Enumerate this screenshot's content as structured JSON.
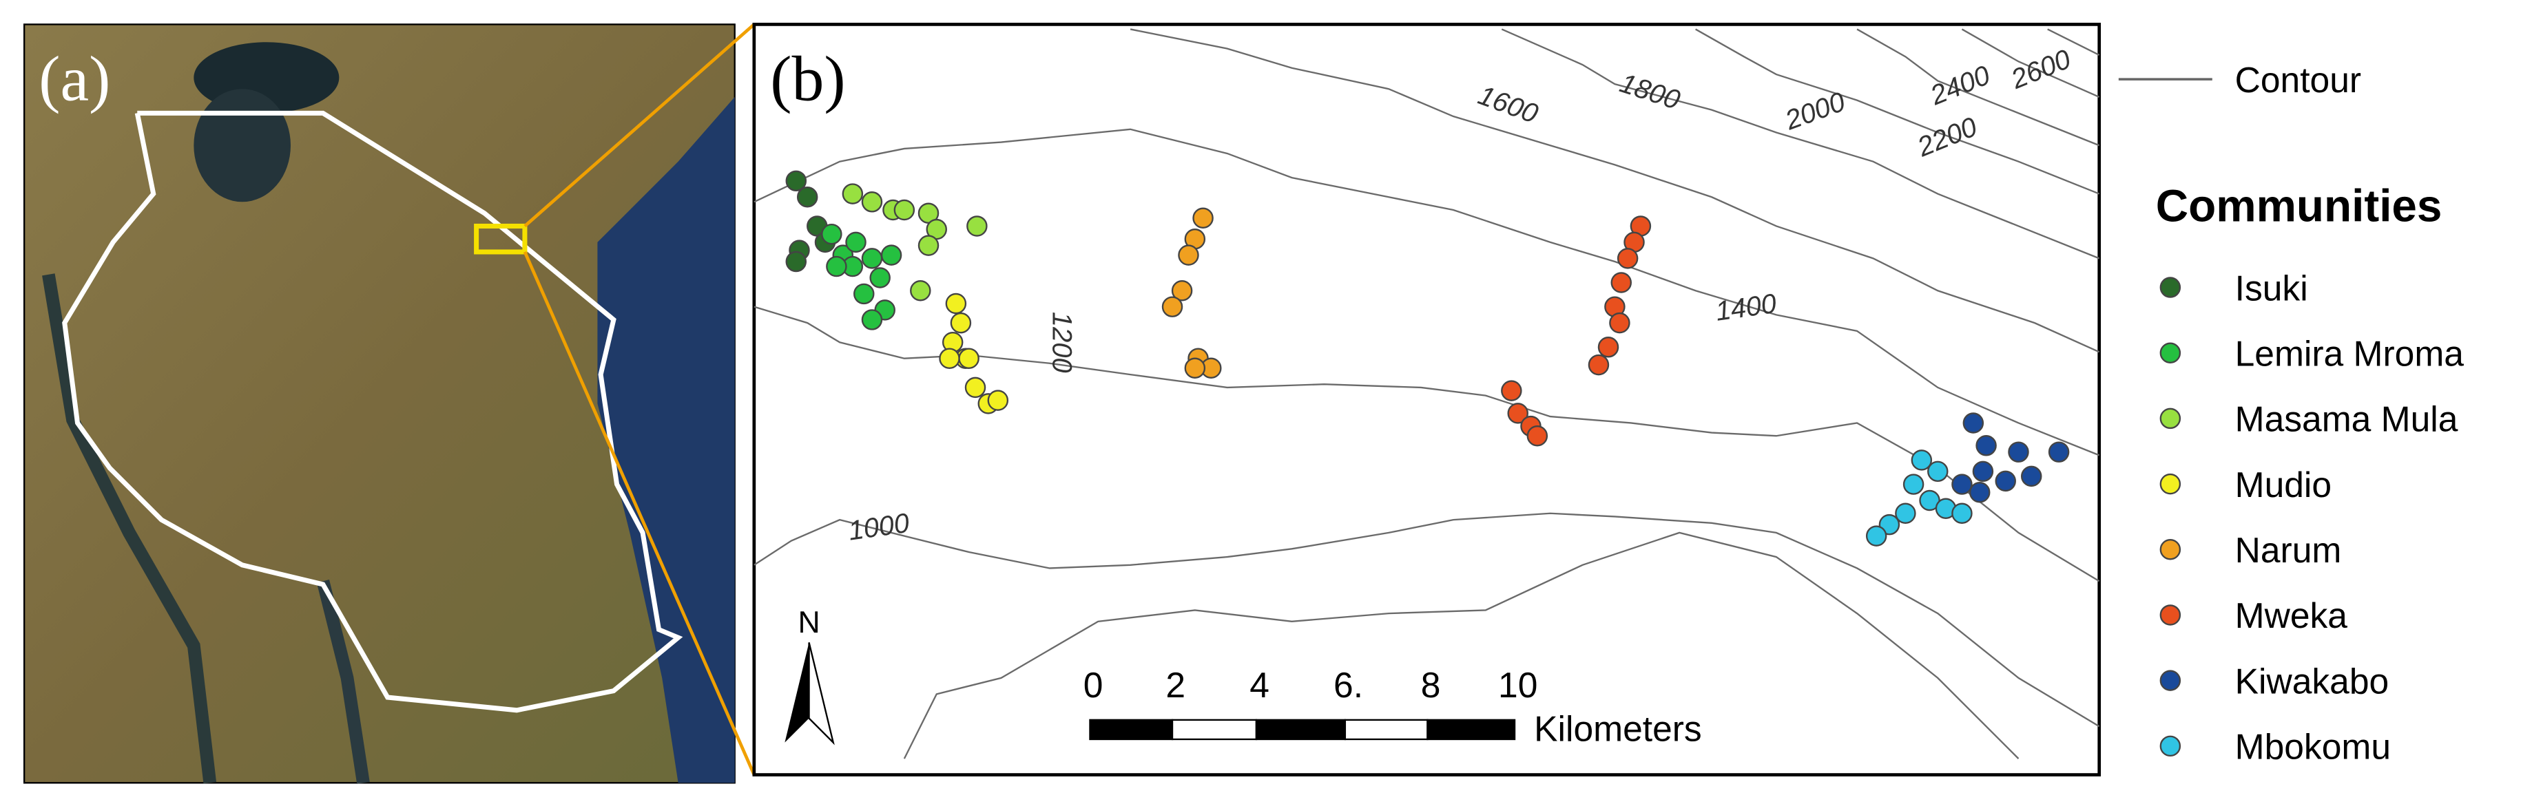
{
  "panel_a": {
    "label": "(a)"
  },
  "panel_b": {
    "label": "(b)",
    "contour_labels": [
      "1000",
      "1200",
      "1400",
      "1600",
      "1800",
      "2000",
      "2200",
      "2400",
      "2600"
    ],
    "north": "N",
    "scale_labels": [
      "0",
      "2",
      "4",
      "6.",
      "8",
      "10"
    ],
    "scale_unit": "Kilometers"
  },
  "legend": {
    "contour": "Contour",
    "title": "Communities",
    "communities": [
      {
        "name": "Isuki",
        "color": "#2a6a2a"
      },
      {
        "name": "Lemira Mroma",
        "color": "#25c040"
      },
      {
        "name": "Masama Mula",
        "color": "#98e040"
      },
      {
        "name": "Mudio",
        "color": "#f2f020"
      },
      {
        "name": "Narum",
        "color": "#f0a020"
      },
      {
        "name": "Mweka",
        "color": "#e8501e"
      },
      {
        "name": "Kiwakabo",
        "color": "#1a4a9a"
      },
      {
        "name": "Mbokomu",
        "color": "#30c4e4"
      }
    ]
  }
}
